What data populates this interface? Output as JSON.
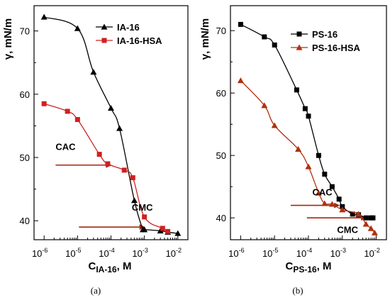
{
  "chart_data": [
    {
      "type": "line",
      "panel_label": "(a)",
      "ylabel": "γ, mN/m",
      "xlabel_prefix": "C",
      "xlabel_sub": "IA-16",
      "xlabel_suffix": ", M",
      "x_scale": "log",
      "xlim": [
        5e-07,
        0.02
      ],
      "ylim": [
        37,
        74
      ],
      "x_ticks": [
        1e-06,
        1e-05,
        0.0001,
        0.001,
        0.01
      ],
      "x_tick_labels": [
        [
          "10",
          "-6"
        ],
        [
          "10",
          "-5"
        ],
        [
          "10",
          "-4"
        ],
        [
          "10",
          "-3"
        ],
        [
          "10",
          "-2"
        ]
      ],
      "y_ticks": [
        40,
        50,
        60,
        70
      ],
      "y_tick_labels": [
        "40",
        "50",
        "60",
        "70"
      ],
      "legend_position": "top-right",
      "series": [
        {
          "name": "IA-16",
          "color": "#000000",
          "marker": "triangle",
          "x": [
            1e-06,
            1e-05,
            3e-05,
            0.0001,
            0.00018,
            0.0005,
            0.0009,
            0.001,
            0.003,
            0.005,
            0.01
          ],
          "y": [
            72.2,
            70.4,
            63.5,
            57.8,
            54.6,
            43.2,
            38.6,
            38.6,
            38.4,
            38.2,
            38.0
          ]
        },
        {
          "name": "IA-16-HSA",
          "color": "#d02020",
          "marker": "square",
          "x": [
            1e-06,
            5e-06,
            1e-05,
            4.5e-05,
            8e-05,
            0.00025,
            0.00045,
            0.001,
            0.0035,
            0.005
          ],
          "y": [
            58.5,
            57.3,
            56.0,
            50.5,
            49.0,
            48.0,
            46.8,
            40.6,
            38.8,
            38.3
          ]
        }
      ],
      "annotations": [
        {
          "text": "CAC",
          "at": [
            2.2e-06,
            51.2
          ]
        },
        {
          "text": "CMC",
          "at": [
            0.00042,
            41.6
          ]
        }
      ],
      "arrows": [
        {
          "from": [
            2.2e-06,
            48.8
          ],
          "to": [
            0.0001,
            48.8
          ]
        },
        {
          "from": [
            1.1e-05,
            39.0
          ],
          "to": [
            0.001,
            39.0
          ]
        }
      ]
    },
    {
      "type": "line",
      "panel_label": "(b)",
      "ylabel": "γ, mN/m",
      "xlabel_prefix": "C",
      "xlabel_sub": "PS-16",
      "xlabel_suffix": ", M",
      "x_scale": "log",
      "xlim": [
        5e-07,
        0.02
      ],
      "ylim": [
        36.5,
        74
      ],
      "x_ticks": [
        1e-06,
        1e-05,
        0.0001,
        0.001,
        0.01
      ],
      "x_tick_labels": [
        [
          "10",
          "-6"
        ],
        [
          "10",
          "-5"
        ],
        [
          "10",
          "-4"
        ],
        [
          "10",
          "-3"
        ],
        [
          "10",
          "-2"
        ]
      ],
      "y_ticks": [
        40,
        50,
        60,
        70
      ],
      "y_tick_labels": [
        "40",
        "50",
        "60",
        "70"
      ],
      "legend_position": "top-right",
      "series": [
        {
          "name": "PS-16",
          "color": "#000000",
          "marker": "square",
          "x": [
            1e-06,
            5e-06,
            1e-05,
            4.5e-05,
            8e-05,
            0.0001,
            0.0002,
            0.0003,
            0.0005,
            0.0008,
            0.001,
            0.002,
            0.003,
            0.005,
            0.007,
            0.008
          ],
          "y": [
            71.0,
            69.0,
            67.7,
            60.5,
            57.5,
            56.3,
            50.0,
            47.0,
            45.0,
            43.0,
            41.8,
            40.6,
            40.5,
            40.0,
            40.0,
            40.0
          ]
        },
        {
          "name": "PS-16-HSA",
          "color": "#b03010",
          "marker": "triangle",
          "x": [
            1e-06,
            5e-06,
            1e-05,
            5e-05,
            0.0001,
            0.0002,
            0.0003,
            0.0005,
            0.001,
            0.003,
            0.005,
            0.007,
            0.009
          ],
          "y": [
            62.0,
            58.0,
            54.8,
            51.0,
            48.2,
            44.0,
            42.3,
            42.2,
            41.3,
            40.6,
            39.0,
            38.3,
            37.6
          ]
        }
      ],
      "annotations": [
        {
          "text": "CAC",
          "at": [
            0.00013,
            43.6
          ]
        },
        {
          "text": "CMC",
          "at": [
            0.0007,
            37.6
          ]
        }
      ],
      "arrows": [
        {
          "from": [
            3e-05,
            42.0
          ],
          "to": [
            0.0008,
            42.0
          ]
        },
        {
          "from": [
            9e-05,
            40.0
          ],
          "to": [
            0.005,
            40.0
          ]
        }
      ]
    }
  ]
}
